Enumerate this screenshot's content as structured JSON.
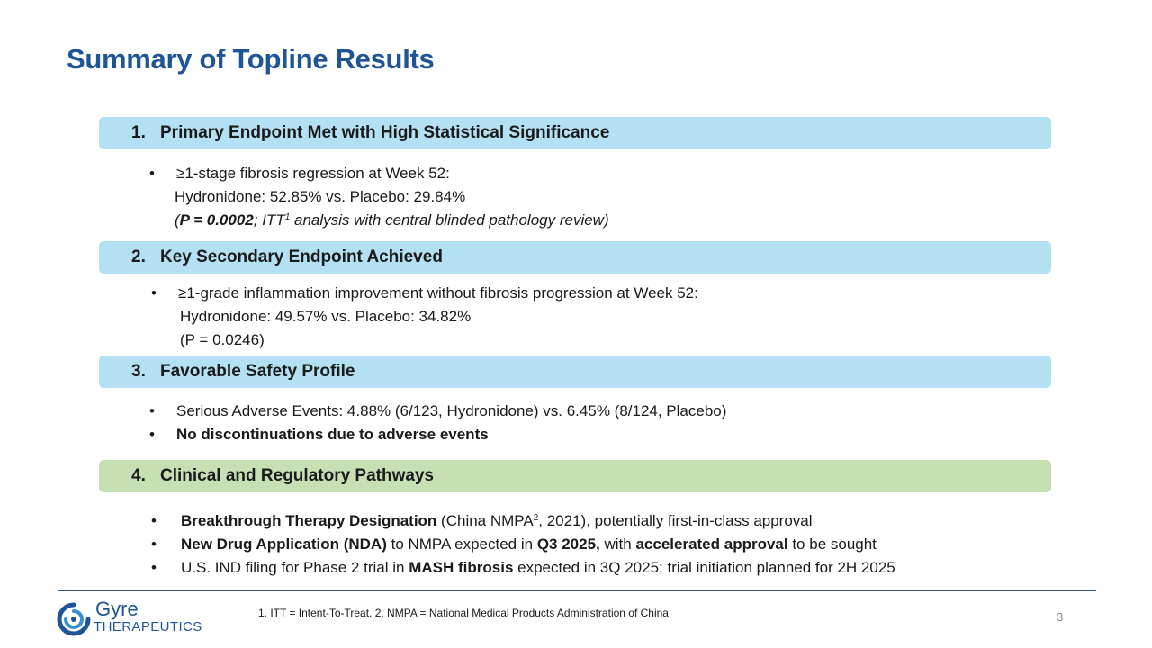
{
  "title": "Summary of Topline Results",
  "sections": [
    {
      "number": "1.",
      "heading": "Primary Endpoint Met with High Statistical Significance"
    },
    {
      "number": "2.",
      "heading": "Key Secondary Endpoint Achieved"
    },
    {
      "number": "3.",
      "heading": "Favorable Safety Profile"
    },
    {
      "number": "4.",
      "heading": "Clinical and Regulatory Pathways"
    }
  ],
  "s1": {
    "line1": "≥1-stage fibrosis regression at Week 52:",
    "line2": "Hydronidone: 52.85% vs. Placebo: 29.84%",
    "line3_open": "(",
    "line3_pval": "P = 0.0002",
    "line3_mid": "; ITT",
    "line3_sup": "1",
    "line3_rest": " analysis with central blinded pathology review)"
  },
  "s2": {
    "line1": "≥1-grade inflammation improvement without fibrosis progression at Week 52:",
    "line2": "Hydronidone: 49.57% vs.  Placebo: 34.82%",
    "line3": "(P = 0.0246)"
  },
  "s3": {
    "item1": "Serious Adverse Events: 4.88% (6/123, Hydronidone) vs. 6.45% (8/124, Placebo)",
    "item2": "No discontinuations due to adverse events"
  },
  "s4": {
    "item1_bold": "Breakthrough Therapy Designation",
    "item1_a": " (China NMPA",
    "item1_sup": "2",
    "item1_b": ", 2021), potentially first-in-class approval",
    "item2_bold1": "New Drug Application (NDA)",
    "item2_a": " to NMPA expected in ",
    "item2_bold2": "Q3 2025,",
    "item2_b": " with ",
    "item2_bold3": "accelerated approval",
    "item2_c": " to be sought",
    "item3_a": "U.S. IND filing for Phase 2 trial in ",
    "item3_bold": "MASH fibrosis",
    "item3_b": " expected in 3Q 2025; trial initiation planned for 2H 2025"
  },
  "bullet_char": "•",
  "footnote": "1. ITT = Intent-To-Treat. 2. NMPA = National Medical Products Administration of China",
  "page_number": "3",
  "logo": {
    "name_top": "Gyre",
    "name_bottom": "THERAPEUTICS",
    "icon": "gyre-swirl-icon"
  },
  "colors": {
    "title": "#1f5597",
    "bar_blue": "#b4e0f3",
    "bar_green": "#c6e0b4"
  }
}
